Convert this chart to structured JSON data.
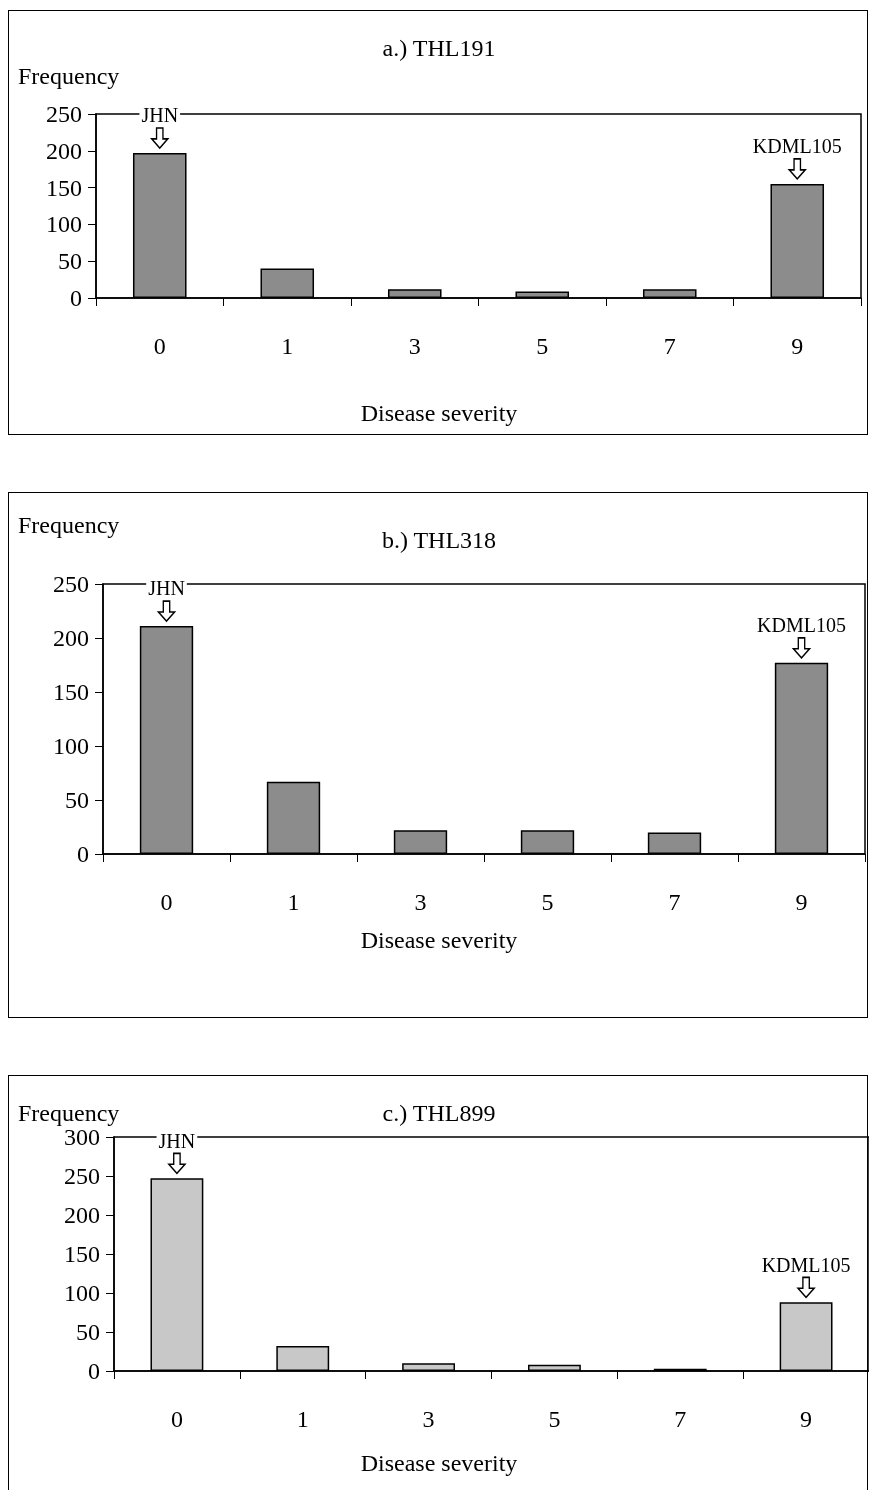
{
  "chart_data": [
    {
      "type": "bar",
      "title": "a.) THL191",
      "xlabel": "Disease severity",
      "ylabel": "Frequency",
      "categories": [
        "0",
        "1",
        "3",
        "5",
        "7",
        "9"
      ],
      "values": [
        197,
        40,
        12,
        9,
        12,
        155
      ],
      "color": "#8c8c8c",
      "ylim": [
        0,
        250
      ],
      "yticks": [
        0,
        50,
        100,
        150,
        200,
        250
      ],
      "grid": false,
      "annotations": [
        {
          "text": "JHN",
          "x": "0",
          "y": 197
        },
        {
          "text": "KDML105",
          "x": "9",
          "y": 155
        }
      ]
    },
    {
      "type": "bar",
      "title": "b.) THL318",
      "xlabel": "Disease severity",
      "ylabel": "Frequency",
      "categories": [
        "0",
        "1",
        "3",
        "5",
        "7",
        "9"
      ],
      "values": [
        211,
        67,
        22,
        22,
        20,
        177
      ],
      "color": "#8c8c8c",
      "ylim": [
        0,
        250
      ],
      "yticks": [
        0,
        50,
        100,
        150,
        200,
        250
      ],
      "grid": false,
      "annotations": [
        {
          "text": "JHN",
          "x": "0",
          "y": 211
        },
        {
          "text": "KDML105",
          "x": "9",
          "y": 177
        }
      ]
    },
    {
      "type": "bar",
      "title": "c.) THL899",
      "xlabel": "Disease severity",
      "ylabel": "Frequency",
      "categories": [
        "0",
        "1",
        "3",
        "5",
        "7",
        "9"
      ],
      "values": [
        247,
        32,
        10,
        8,
        3,
        88
      ],
      "color": "#c8c8c8",
      "ylim": [
        0,
        300
      ],
      "yticks": [
        0,
        50,
        100,
        150,
        200,
        250,
        300
      ],
      "grid": false,
      "annotations": [
        {
          "text": "JHN",
          "x": "0",
          "y": 247
        },
        {
          "text": "KDML105",
          "x": "9",
          "y": 88
        }
      ]
    }
  ]
}
